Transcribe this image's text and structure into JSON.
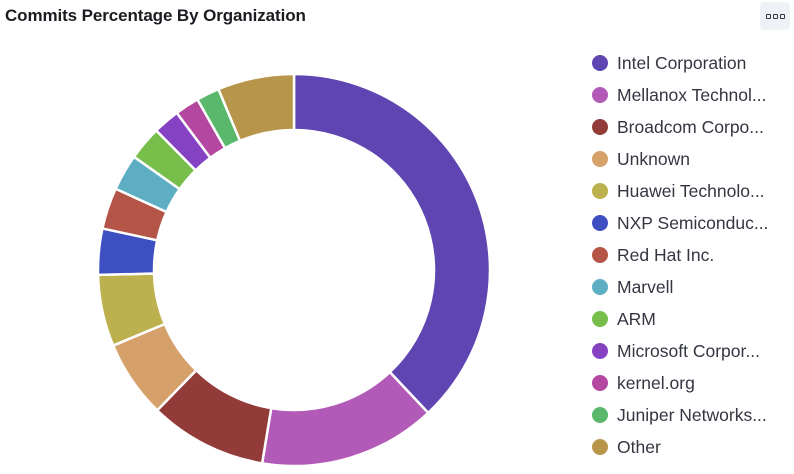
{
  "panel": {
    "title": "Commits Percentage By Organization",
    "menu_icon": "options-icon"
  },
  "chart_data": {
    "type": "pie",
    "variant": "donut",
    "title": "Commits Percentage By Organization",
    "legend_position": "right",
    "series": [
      {
        "name": "Intel Corporation",
        "display_label": "Intel Corporation",
        "value": 38.0,
        "color": "#5f45b2"
      },
      {
        "name": "Mellanox Technologies",
        "display_label": "Mellanox Technol...",
        "value": 14.6,
        "color": "#b25ab8"
      },
      {
        "name": "Broadcom Corporation",
        "display_label": "Broadcom Corpo...",
        "value": 9.7,
        "color": "#933b38"
      },
      {
        "name": "Unknown",
        "display_label": "Unknown",
        "value": 6.4,
        "color": "#d6a06a"
      },
      {
        "name": "Huawei Technologies",
        "display_label": "Huawei Technolo...",
        "value": 5.9,
        "color": "#bdb04e"
      },
      {
        "name": "NXP Semiconductors",
        "display_label": "NXP Semiconduc...",
        "value": 3.8,
        "color": "#3e4fc1"
      },
      {
        "name": "Red Hat Inc.",
        "display_label": "Red Hat Inc.",
        "value": 3.4,
        "color": "#b45547"
      },
      {
        "name": "Marvell",
        "display_label": "Marvell",
        "value": 3.0,
        "color": "#5eaec3"
      },
      {
        "name": "ARM",
        "display_label": "ARM",
        "value": 2.8,
        "color": "#78be4b"
      },
      {
        "name": "Microsoft Corporation",
        "display_label": "Microsoft Corpor...",
        "value": 2.2,
        "color": "#8543c4"
      },
      {
        "name": "kernel.org",
        "display_label": "kernel.org",
        "value": 2.0,
        "color": "#b4479f"
      },
      {
        "name": "Juniper Networks",
        "display_label": "Juniper Networks...",
        "value": 1.9,
        "color": "#5ab86c"
      },
      {
        "name": "Other",
        "display_label": "Other",
        "value": 6.3,
        "color": "#b7964b"
      }
    ]
  }
}
